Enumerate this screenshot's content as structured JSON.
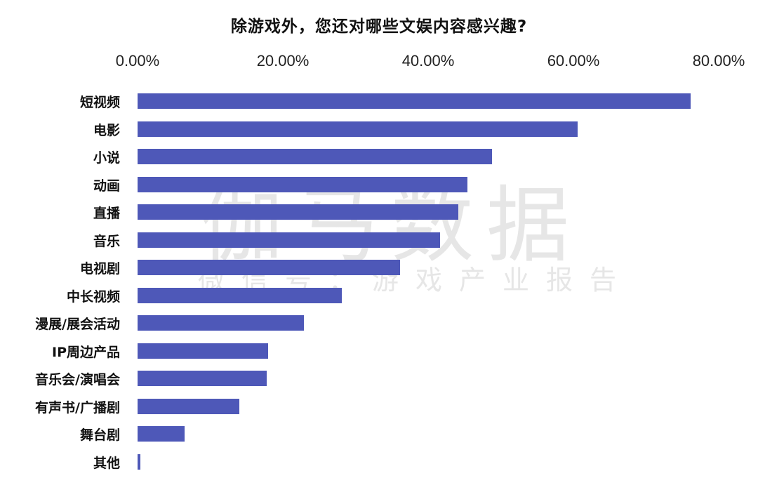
{
  "chart_data": {
    "type": "bar",
    "orientation": "horizontal",
    "title": "除游戏外，您还对哪些文娱内容感兴趣?",
    "xlabel": "",
    "ylabel": "",
    "xlim": [
      0,
      80
    ],
    "x_tick_labels": [
      "0.00%",
      "20.00%",
      "40.00%",
      "60.00%",
      "80.00%"
    ],
    "x_ticks": [
      0,
      20,
      40,
      60,
      80
    ],
    "axis_position": "top",
    "grid": false,
    "legend": null,
    "bar_color": "#4e58b8",
    "categories": [
      "短视频",
      "电影",
      "小说",
      "动画",
      "直播",
      "音乐",
      "电视剧",
      "中长视频",
      "漫展/展会活动",
      "IP周边产品",
      "音乐会/演唱会",
      "有声书/广播剧",
      "舞台剧",
      "其他"
    ],
    "values": [
      76.1,
      60.6,
      48.8,
      45.4,
      44.2,
      41.6,
      36.1,
      28.1,
      22.9,
      18.0,
      17.8,
      14.0,
      6.5,
      0.4
    ],
    "unit": "%"
  },
  "watermark": {
    "main": "伽马数据",
    "sub": "微信号：游戏产业报告"
  }
}
